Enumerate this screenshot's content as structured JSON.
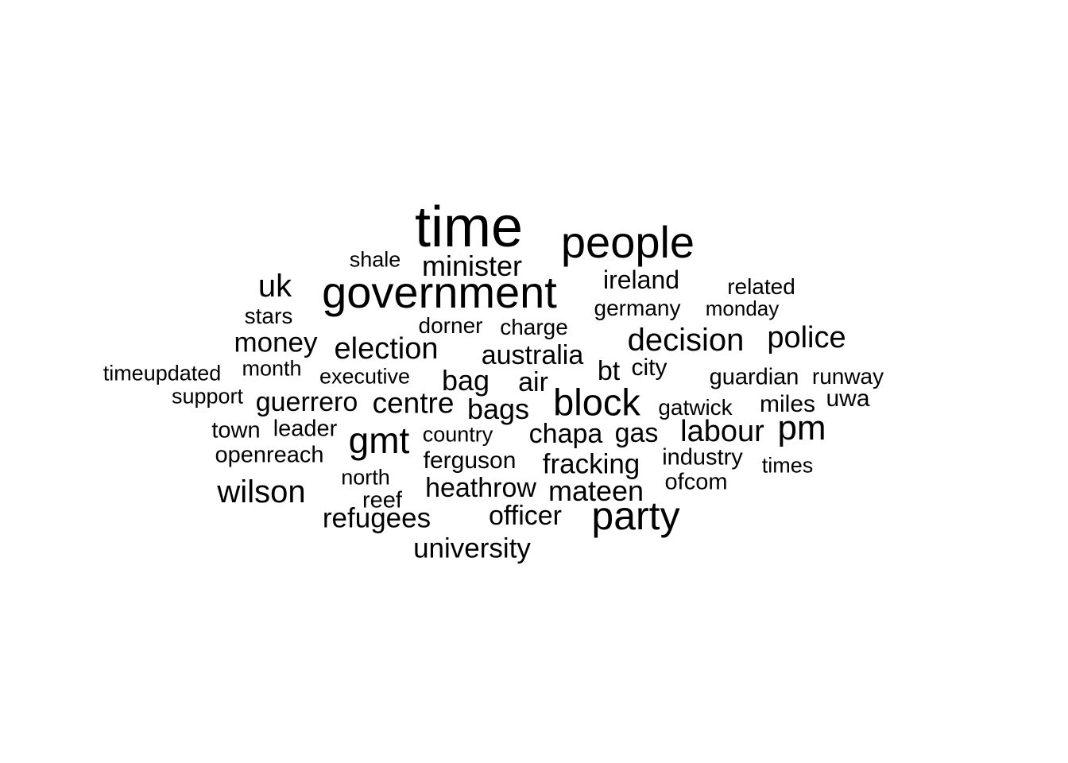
{
  "words": [
    {
      "text": "time"
    },
    {
      "text": "people"
    },
    {
      "text": "government"
    },
    {
      "text": "minister"
    },
    {
      "text": "shale"
    },
    {
      "text": "uk"
    },
    {
      "text": "ireland"
    },
    {
      "text": "related"
    },
    {
      "text": "germany"
    },
    {
      "text": "monday"
    },
    {
      "text": "stars"
    },
    {
      "text": "dorner"
    },
    {
      "text": "charge"
    },
    {
      "text": "money"
    },
    {
      "text": "election"
    },
    {
      "text": "decision"
    },
    {
      "text": "police"
    },
    {
      "text": "australia"
    },
    {
      "text": "timeupdated"
    },
    {
      "text": "month"
    },
    {
      "text": "executive"
    },
    {
      "text": "bag"
    },
    {
      "text": "air"
    },
    {
      "text": "bt"
    },
    {
      "text": "city"
    },
    {
      "text": "guardian"
    },
    {
      "text": "runway"
    },
    {
      "text": "support"
    },
    {
      "text": "guerrero"
    },
    {
      "text": "centre"
    },
    {
      "text": "bags"
    },
    {
      "text": "block"
    },
    {
      "text": "gatwick"
    },
    {
      "text": "miles"
    },
    {
      "text": "uwa"
    },
    {
      "text": "town"
    },
    {
      "text": "leader"
    },
    {
      "text": "gmt"
    },
    {
      "text": "country"
    },
    {
      "text": "chapa"
    },
    {
      "text": "gas"
    },
    {
      "text": "labour"
    },
    {
      "text": "pm"
    },
    {
      "text": "openreach"
    },
    {
      "text": "ferguson"
    },
    {
      "text": "fracking"
    },
    {
      "text": "industry"
    },
    {
      "text": "times"
    },
    {
      "text": "north"
    },
    {
      "text": "wilson"
    },
    {
      "text": "heathrow"
    },
    {
      "text": "mateen"
    },
    {
      "text": "ofcom"
    },
    {
      "text": "reef"
    },
    {
      "text": "refugees"
    },
    {
      "text": "officer"
    },
    {
      "text": "party"
    },
    {
      "text": "university"
    }
  ]
}
